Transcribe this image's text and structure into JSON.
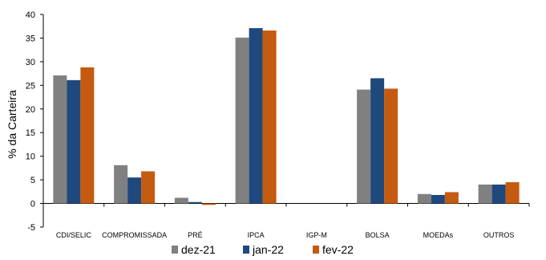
{
  "chart_data": {
    "type": "bar",
    "ylabel": "% da Carteira",
    "xlabel": "",
    "ylim": [
      -5,
      40
    ],
    "yticks": [
      -5,
      0,
      5,
      10,
      15,
      20,
      25,
      30,
      35,
      40
    ],
    "categories": [
      "CDI/SELIC",
      "COMPROMISSADA",
      "PRÉ",
      "IPCA",
      "IGP-M",
      "BOLSA",
      "MOEDAs",
      "OUTROS"
    ],
    "series": [
      {
        "name": "dez-21",
        "color": "#808080",
        "values": [
          27.1,
          8.1,
          1.2,
          35.1,
          0.0,
          24.1,
          2.0,
          4.0
        ]
      },
      {
        "name": "jan-22",
        "color": "#1F497D",
        "values": [
          26.1,
          5.5,
          0.3,
          37.1,
          0.0,
          26.5,
          1.8,
          4.0
        ]
      },
      {
        "name": "fev-22",
        "color": "#C55A11",
        "values": [
          28.8,
          6.8,
          -0.3,
          36.6,
          0.0,
          24.3,
          2.4,
          4.5
        ]
      }
    ],
    "grid": false,
    "legend_position": "bottom"
  }
}
